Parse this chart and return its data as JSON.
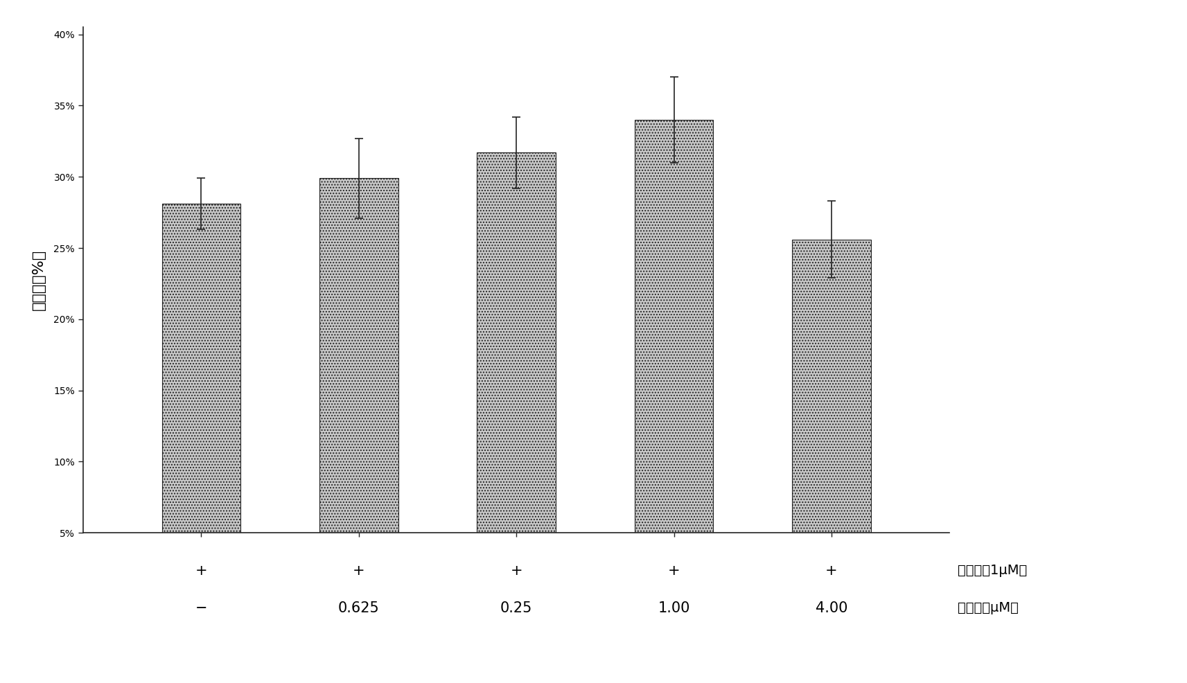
{
  "categories": [
    "1",
    "2",
    "3",
    "4",
    "5"
  ],
  "values": [
    0.281,
    0.299,
    0.317,
    0.34,
    0.256
  ],
  "errors": [
    0.018,
    0.028,
    0.025,
    0.03,
    0.027
  ],
  "bar_color": "#c8c8c8",
  "bar_edgecolor": "#222222",
  "bar_width": 0.5,
  "ylim": [
    0.05,
    0.405
  ],
  "yticks": [
    0.05,
    0.1,
    0.15,
    0.2,
    0.25,
    0.3,
    0.35,
    0.4
  ],
  "ytick_labels": [
    "5%",
    "10%",
    "15%",
    "20%",
    "25%",
    "30%",
    "35%",
    "40%"
  ],
  "ylabel": "抑制率（%）",
  "ylabel_fontsize": 16,
  "row1_labels": [
    "+",
    "+",
    "+",
    "+",
    "+"
  ],
  "row1_suffix": "阿霉素（1μM）",
  "row2_labels": [
    "−",
    "0.625",
    "0.25",
    "1.00",
    "4.00"
  ],
  "row2_suffix": "小檗碱（μM）",
  "background_color": "#ffffff",
  "figure_bgcolor": "#ffffff",
  "errorbar_color": "#222222",
  "errorbar_capsize": 4,
  "errorbar_linewidth": 1.2,
  "tick_fontsize": 14,
  "label_fontsize": 15,
  "suffix_fontsize": 14,
  "xlim_left": 0.25,
  "xlim_right": 5.75
}
